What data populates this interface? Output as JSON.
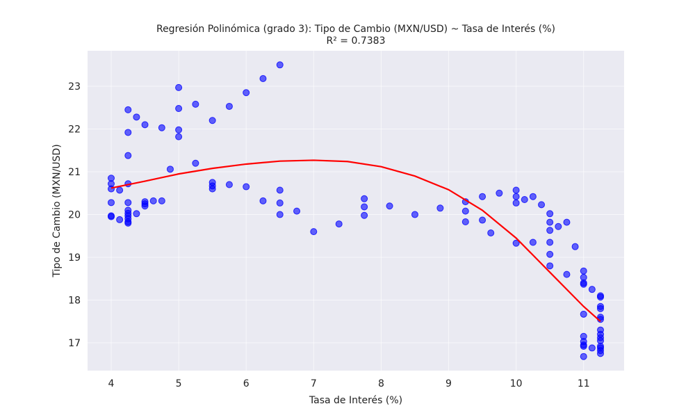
{
  "chart_data": {
    "type": "scatter",
    "title": "Regresión Polinómica (grado 3): Tipo de Cambio (MXN/USD) ~ Tasa de Interés (%)",
    "subtitle": "R² = 0.7383",
    "x_label": "Tasa de Interés (%)",
    "y_label": "Tipo de Cambio (MXN/USD)",
    "xlim": [
      3.65,
      11.6
    ],
    "ylim": [
      16.35,
      23.83
    ],
    "xticks": [
      4,
      5,
      6,
      7,
      8,
      9,
      10,
      11
    ],
    "yticks": [
      17,
      18,
      19,
      20,
      21,
      22,
      23
    ],
    "grid": true,
    "points": {
      "color": "#0000ff",
      "x": [
        4,
        4,
        4,
        4,
        4,
        4,
        4.125,
        4.125,
        4.25,
        4.25,
        4.25,
        4.25,
        4.25,
        4.25,
        4.25,
        4.25,
        4.25,
        4.25,
        4.25,
        4.375,
        4.375,
        4.5,
        4.5,
        4.5,
        4.5,
        4.625,
        4.75,
        4.75,
        4.875,
        5,
        5,
        5,
        5,
        5.25,
        5.25,
        5.5,
        5.5,
        5.5,
        5.5,
        5.75,
        5.75,
        6,
        6,
        6.25,
        6.25,
        6.5,
        6.5,
        6.5,
        6.5,
        6.75,
        7,
        7.375,
        7.75,
        7.75,
        7.75,
        8.125,
        8.5,
        8.875,
        9.25,
        9.25,
        9.25,
        9.5,
        9.5,
        9.625,
        9.75,
        10,
        10,
        10,
        10,
        10.125,
        10.25,
        10.25,
        10.375,
        10.5,
        10.5,
        10.5,
        10.5,
        10.5,
        10.5,
        10.625,
        10.75,
        10.75,
        10.875,
        11,
        11,
        11,
        11,
        11,
        11,
        11,
        11,
        11,
        11,
        11.125,
        11.125,
        11.25,
        11.25,
        11.25,
        11.25,
        11.25,
        11.25,
        11.25,
        11.25,
        11.25,
        11.25,
        11.25,
        11.25,
        11.25,
        11.25
      ],
      "values": [
        20.85,
        20.72,
        20.6,
        20.28,
        19.97,
        19.95,
        20.57,
        19.88,
        22.45,
        21.92,
        21.38,
        20.72,
        20.28,
        20.1,
        20.03,
        19.97,
        19.9,
        19.83,
        19.8,
        22.28,
        20.02,
        22.1,
        20.3,
        20.25,
        20.2,
        20.32,
        22.03,
        20.32,
        21.06,
        22.97,
        22.48,
        21.98,
        21.82,
        22.58,
        21.2,
        22.2,
        20.75,
        20.67,
        20.6,
        22.53,
        20.7,
        22.85,
        20.65,
        23.18,
        20.32,
        23.5,
        20.57,
        20.27,
        20.0,
        20.08,
        19.6,
        19.78,
        20.37,
        20.18,
        19.98,
        20.2,
        20.0,
        20.15,
        20.3,
        20.08,
        19.83,
        20.42,
        19.87,
        19.57,
        20.5,
        20.57,
        20.42,
        20.27,
        19.33,
        20.35,
        20.42,
        19.35,
        20.23,
        20.02,
        19.82,
        19.63,
        19.35,
        19.07,
        18.8,
        19.72,
        19.82,
        18.6,
        19.25,
        18.68,
        18.53,
        18.4,
        18.37,
        17.67,
        17.15,
        17.03,
        16.95,
        16.92,
        16.68,
        18.25,
        16.88,
        18.1,
        18.07,
        17.85,
        17.8,
        17.6,
        17.55,
        17.3,
        17.2,
        17.12,
        17.05,
        16.92,
        16.88,
        16.82,
        16.75
      ]
    },
    "fit": {
      "color": "#ff0000",
      "x": [
        4,
        4.5,
        5,
        5.5,
        6,
        6.5,
        7,
        7.5,
        8,
        8.5,
        9,
        9.5,
        10,
        10.5,
        11,
        11.25
      ],
      "values": [
        20.62,
        20.78,
        20.95,
        21.08,
        21.18,
        21.25,
        21.27,
        21.24,
        21.12,
        20.9,
        20.58,
        20.1,
        19.45,
        18.65,
        17.85,
        17.5
      ]
    }
  }
}
